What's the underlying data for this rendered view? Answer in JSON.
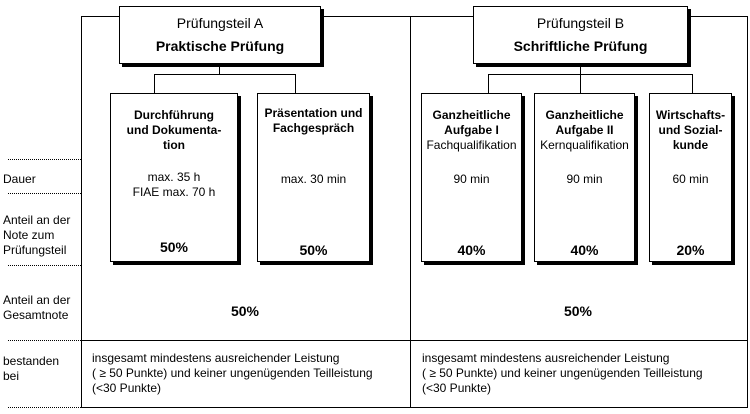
{
  "part_a": {
    "title": "Prüfungsteil A",
    "subtitle": "Praktische Prüfung",
    "modules": [
      {
        "title": [
          "Durchführung",
          "und Dokumenta-",
          "tion"
        ],
        "qualifier": "",
        "duration": [
          "max. 35 h",
          "FIAE max. 70 h"
        ],
        "share": "50%"
      },
      {
        "title": [
          "Präsentation und",
          "Fachgespräch"
        ],
        "qualifier": "",
        "duration": [
          "max. 30 min"
        ],
        "share": "50%"
      }
    ],
    "total_share": "50%",
    "passing": [
      "insgesamt mindestens ausreichender Leistung",
      "( ≥ 50 Punkte) und keiner ungenügenden Teilleistung",
      "(<30 Punkte)"
    ]
  },
  "part_b": {
    "title": "Prüfungsteil B",
    "subtitle": "Schriftliche Prüfung",
    "modules": [
      {
        "title": [
          "Ganzheitliche",
          "Aufgabe I"
        ],
        "qualifier": "Fachqualifikation",
        "duration": [
          "90 min"
        ],
        "share": "40%"
      },
      {
        "title": [
          "Ganzheitliche",
          "Aufgabe II"
        ],
        "qualifier": "Kernqualifikation",
        "duration": [
          "90 min"
        ],
        "share": "40%"
      },
      {
        "title": [
          "Wirtschafts-",
          "und Sozial-",
          "kunde"
        ],
        "qualifier": "",
        "duration": [
          "60 min"
        ],
        "share": "20%"
      }
    ],
    "total_share": "50%",
    "passing": [
      "insgesamt mindestens ausreichender Leistung",
      "( ≥ 50 Punkte) und keiner ungenügenden Teilleistung",
      "(<30 Punkte)"
    ]
  },
  "row_labels": {
    "dauer": [
      "Dauer"
    ],
    "anteil_teil": [
      "Anteil an der",
      "Note zum",
      "Prüfungsteil"
    ],
    "anteil_gesamt": [
      "Anteil an der",
      "Gesamtnote"
    ],
    "bestanden": [
      "bestanden",
      "bei"
    ]
  }
}
